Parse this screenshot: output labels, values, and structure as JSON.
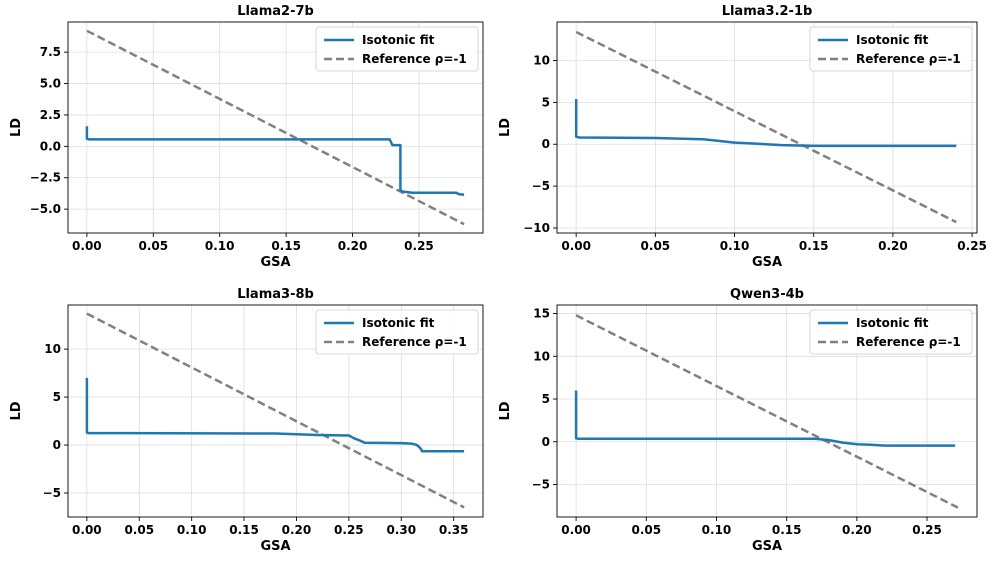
{
  "colors": {
    "fit": "#1f77b4",
    "reference": "#808080"
  },
  "legend": {
    "fit_label": "Isotonic fit",
    "ref_label": "Reference ρ=-1"
  },
  "chart_data": [
    {
      "type": "line",
      "title": "Llama2-7b",
      "xlabel": "GSA",
      "ylabel": "LD",
      "xlim": [
        -0.0142,
        0.2982
      ],
      "ylim": [
        -6.9,
        9.9
      ],
      "xticks": [
        0.0,
        0.05,
        0.1,
        0.15,
        0.2,
        0.25
      ],
      "xtick_labels": [
        "0.00",
        "0.05",
        "0.10",
        "0.15",
        "0.20",
        "0.25"
      ],
      "yticks": [
        -5.0,
        -2.5,
        0.0,
        2.5,
        5.0,
        7.5
      ],
      "ytick_labels": [
        "−5.0",
        "−2.5",
        "0.0",
        "2.5",
        "5.0",
        "7.5"
      ],
      "legend_position": "top-right",
      "series": [
        {
          "name": "Isotonic fit",
          "style": "solid",
          "x": [
            0,
            0,
            0.002,
            0.228,
            0.23,
            0.236,
            0.236,
            0.238,
            0.245,
            0.278,
            0.28,
            0.284
          ],
          "y": [
            1.6,
            0.6,
            0.55,
            0.55,
            0.1,
            0.1,
            -3.5,
            -3.6,
            -3.7,
            -3.7,
            -3.8,
            -3.85
          ]
        },
        {
          "name": "Reference ρ=-1",
          "style": "dashed",
          "x": [
            0,
            0.284
          ],
          "y": [
            9.2,
            -6.2
          ]
        }
      ]
    },
    {
      "type": "line",
      "title": "Llama3.2-1b",
      "xlabel": "GSA",
      "ylabel": "LD",
      "xlim": [
        -0.0121,
        0.2531
      ],
      "ylim": [
        -10.6,
        14.6
      ],
      "xticks": [
        0.0,
        0.05,
        0.1,
        0.15,
        0.2,
        0.25
      ],
      "xtick_labels": [
        "0.00",
        "0.05",
        "0.10",
        "0.15",
        "0.20",
        "0.25"
      ],
      "yticks": [
        -10,
        -5,
        0,
        5,
        10
      ],
      "ytick_labels": [
        "−10",
        "−5",
        "0",
        "5",
        "10"
      ],
      "legend_position": "top-right",
      "series": [
        {
          "name": "Isotonic fit",
          "style": "solid",
          "x": [
            0,
            0,
            0.002,
            0.05,
            0.08,
            0.09,
            0.1,
            0.12,
            0.13,
            0.14,
            0.15,
            0.24
          ],
          "y": [
            5.4,
            0.9,
            0.8,
            0.75,
            0.6,
            0.4,
            0.2,
            0.0,
            -0.1,
            -0.15,
            -0.2,
            -0.2
          ]
        },
        {
          "name": "Reference ρ=-1",
          "style": "dashed",
          "x": [
            0,
            0.24
          ],
          "y": [
            13.4,
            -9.3
          ]
        }
      ]
    },
    {
      "type": "line",
      "title": "Llama3-8b",
      "xlabel": "GSA",
      "ylabel": "LD",
      "xlim": [
        -0.018,
        0.378
      ],
      "ylim": [
        -7.5,
        14.6
      ],
      "xticks": [
        0.0,
        0.05,
        0.1,
        0.15,
        0.2,
        0.25,
        0.3,
        0.35
      ],
      "xtick_labels": [
        "0.00",
        "0.05",
        "0.10",
        "0.15",
        "0.20",
        "0.25",
        "0.30",
        "0.35"
      ],
      "yticks": [
        -5,
        0,
        5,
        10
      ],
      "ytick_labels": [
        "−5",
        "0",
        "5",
        "10"
      ],
      "legend_position": "top-right",
      "series": [
        {
          "name": "Isotonic fit",
          "style": "solid",
          "x": [
            0,
            0,
            0.002,
            0.18,
            0.22,
            0.25,
            0.255,
            0.26,
            0.265,
            0.3,
            0.31,
            0.315,
            0.318,
            0.32,
            0.36
          ],
          "y": [
            7.0,
            1.3,
            1.25,
            1.2,
            1.05,
            1.0,
            0.7,
            0.5,
            0.25,
            0.2,
            0.15,
            0.0,
            -0.3,
            -0.65,
            -0.65
          ]
        },
        {
          "name": "Reference ρ=-1",
          "style": "dashed",
          "x": [
            0,
            0.36
          ],
          "y": [
            13.7,
            -6.5
          ]
        }
      ]
    },
    {
      "type": "line",
      "title": "Qwen3-4b",
      "xlabel": "GSA",
      "ylabel": "LD",
      "xlim": [
        -0.0136,
        0.2856
      ],
      "ylim": [
        -8.8,
        16.0
      ],
      "xticks": [
        0.0,
        0.05,
        0.1,
        0.15,
        0.2,
        0.25
      ],
      "xtick_labels": [
        "0.00",
        "0.05",
        "0.10",
        "0.15",
        "0.20",
        "0.25"
      ],
      "yticks": [
        -5,
        0,
        5,
        10,
        15
      ],
      "ytick_labels": [
        "−5",
        "0",
        "5",
        "10",
        "15"
      ],
      "legend_position": "top-right",
      "series": [
        {
          "name": "Isotonic fit",
          "style": "solid",
          "x": [
            0,
            0,
            0.002,
            0.17,
            0.18,
            0.19,
            0.2,
            0.21,
            0.22,
            0.27
          ],
          "y": [
            6.0,
            0.4,
            0.35,
            0.35,
            0.2,
            -0.1,
            -0.3,
            -0.35,
            -0.45,
            -0.45
          ]
        },
        {
          "name": "Reference ρ=-1",
          "style": "dashed",
          "x": [
            0,
            0.272
          ],
          "y": [
            14.8,
            -7.7
          ]
        }
      ]
    }
  ]
}
